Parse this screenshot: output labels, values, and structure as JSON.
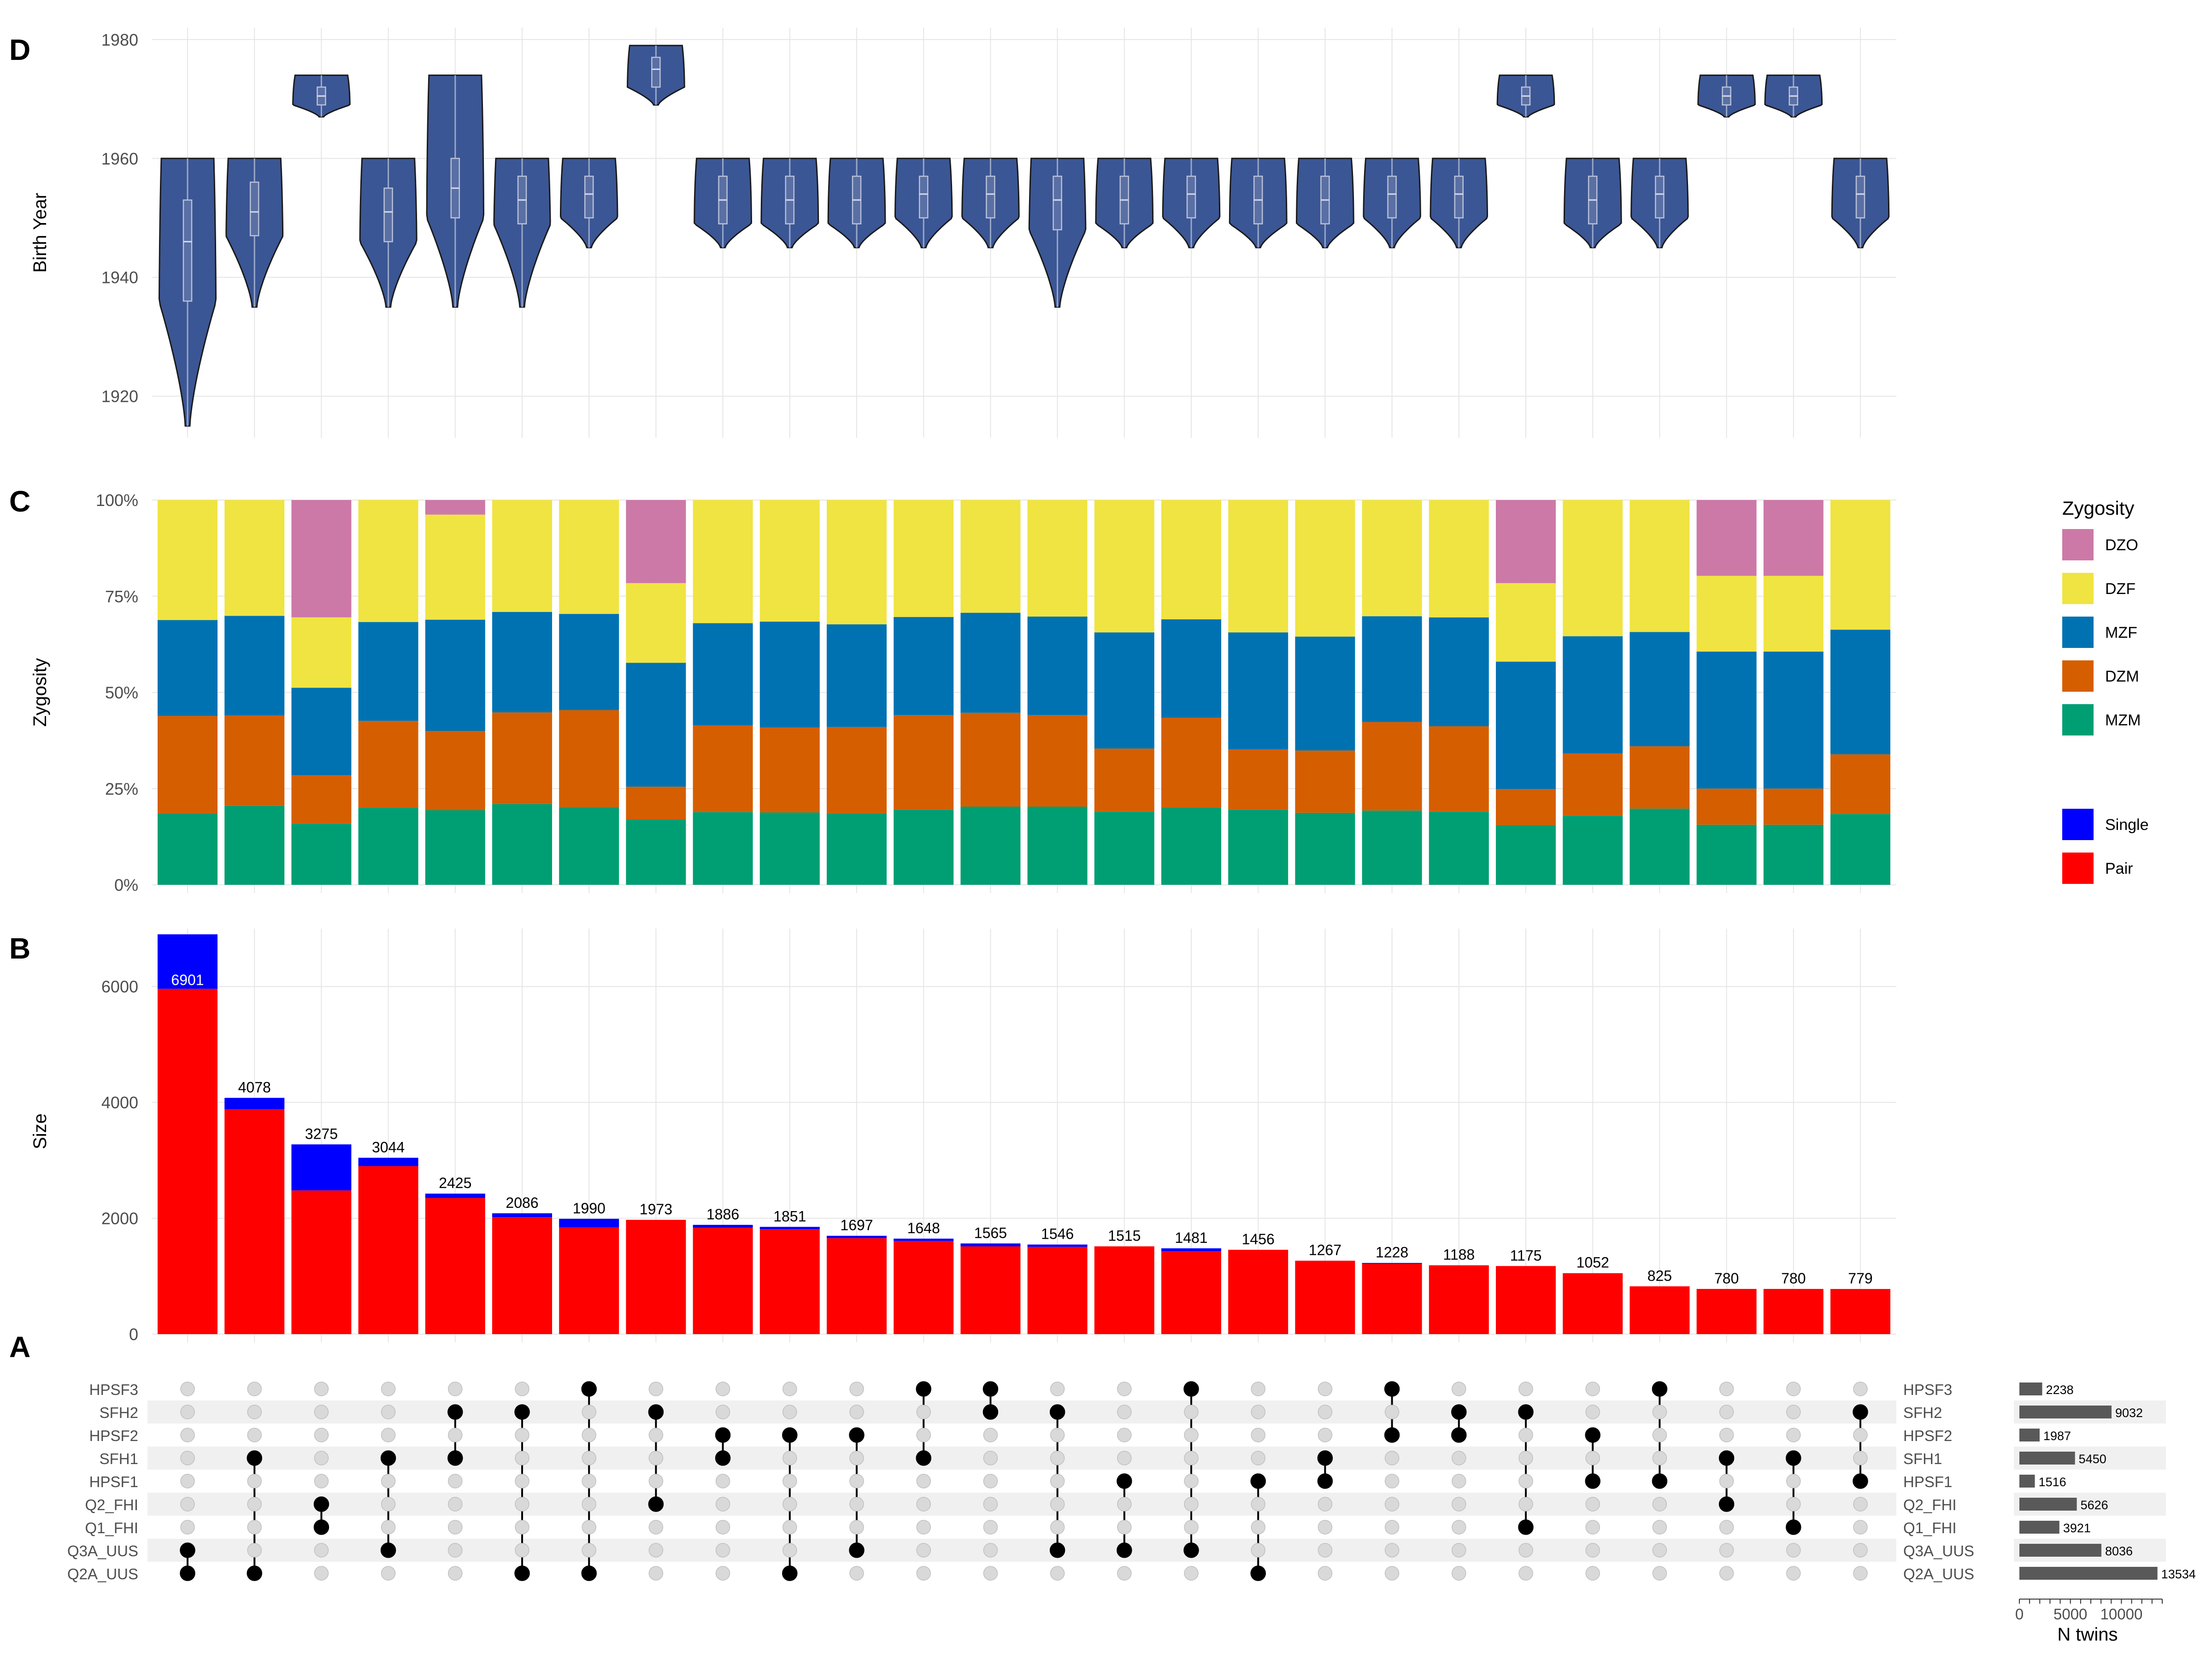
{
  "chart_data": [
    {
      "type": "violin",
      "panel_letter": "D",
      "ylabel": "Birth Year",
      "yticks": [
        1920,
        1940,
        1960,
        1980
      ],
      "ylim": [
        1913,
        1982
      ],
      "fill_color": "#3b5694",
      "groups": [
        {
          "min": 1915,
          "max": 1960,
          "q1": 1936,
          "median": 1946,
          "q3": 1953
        },
        {
          "min": 1935,
          "max": 1960,
          "q1": 1947,
          "median": 1951,
          "q3": 1956
        },
        {
          "min": 1967,
          "max": 1974,
          "q1": 1969,
          "median": 1970.5,
          "q3": 1972
        },
        {
          "min": 1935,
          "max": 1960,
          "q1": 1946,
          "median": 1951,
          "q3": 1955
        },
        {
          "min": 1935,
          "max": 1974,
          "q1": 1950,
          "median": 1955,
          "q3": 1960
        },
        {
          "min": 1935,
          "max": 1960,
          "q1": 1949,
          "median": 1953,
          "q3": 1957
        },
        {
          "min": 1945,
          "max": 1960,
          "q1": 1950,
          "median": 1954,
          "q3": 1957
        },
        {
          "min": 1969,
          "max": 1979,
          "q1": 1972,
          "median": 1975,
          "q3": 1977
        },
        {
          "min": 1945,
          "max": 1960,
          "q1": 1949,
          "median": 1953,
          "q3": 1957
        },
        {
          "min": 1945,
          "max": 1960,
          "q1": 1949,
          "median": 1953,
          "q3": 1957
        },
        {
          "min": 1945,
          "max": 1960,
          "q1": 1949,
          "median": 1953,
          "q3": 1957
        },
        {
          "min": 1945,
          "max": 1960,
          "q1": 1950,
          "median": 1954,
          "q3": 1957
        },
        {
          "min": 1945,
          "max": 1960,
          "q1": 1950,
          "median": 1954,
          "q3": 1957
        },
        {
          "min": 1935,
          "max": 1960,
          "q1": 1948,
          "median": 1953,
          "q3": 1957
        },
        {
          "min": 1945,
          "max": 1960,
          "q1": 1949,
          "median": 1953,
          "q3": 1957
        },
        {
          "min": 1945,
          "max": 1960,
          "q1": 1950,
          "median": 1954,
          "q3": 1957
        },
        {
          "min": 1945,
          "max": 1960,
          "q1": 1949,
          "median": 1953,
          "q3": 1957
        },
        {
          "min": 1945,
          "max": 1960,
          "q1": 1949,
          "median": 1953,
          "q3": 1957
        },
        {
          "min": 1945,
          "max": 1960,
          "q1": 1950,
          "median": 1954,
          "q3": 1957
        },
        {
          "min": 1945,
          "max": 1960,
          "q1": 1950,
          "median": 1954,
          "q3": 1957
        },
        {
          "min": 1967,
          "max": 1974,
          "q1": 1969,
          "median": 1970.5,
          "q3": 1972
        },
        {
          "min": 1945,
          "max": 1960,
          "q1": 1949,
          "median": 1953,
          "q3": 1957
        },
        {
          "min": 1945,
          "max": 1960,
          "q1": 1950,
          "median": 1954,
          "q3": 1957
        },
        {
          "min": 1967,
          "max": 1974,
          "q1": 1969,
          "median": 1970.5,
          "q3": 1972
        },
        {
          "min": 1967,
          "max": 1974,
          "q1": 1969,
          "median": 1970.5,
          "q3": 1972
        },
        {
          "min": 1945,
          "max": 1960,
          "q1": 1950,
          "median": 1954,
          "q3": 1957
        }
      ]
    },
    {
      "type": "bar",
      "stacked": true,
      "panel_letter": "C",
      "ylabel": "Zygosity",
      "yticks": [
        "0%",
        "25%",
        "50%",
        "75%",
        "100%"
      ],
      "ylim": [
        0,
        100
      ],
      "stack_order": [
        "MZM",
        "DZM",
        "MZF",
        "DZF",
        "DZO"
      ],
      "series": [
        {
          "name": "MZM",
          "color": "#009e73",
          "values": [
            18.5,
            20.5,
            15.9,
            20.1,
            19.4,
            21.0,
            20.2,
            17.0,
            18.9,
            18.8,
            18.6,
            19.5,
            20.3,
            20.3,
            19.0,
            20.0,
            19.5,
            18.7,
            19.3,
            19.0,
            15.5,
            18.0,
            19.8,
            15.6,
            15.6,
            18.4
          ]
        },
        {
          "name": "DZM",
          "color": "#d55e00",
          "values": [
            25.4,
            23.5,
            12.6,
            22.5,
            20.6,
            23.8,
            25.2,
            8.5,
            22.5,
            22.1,
            22.4,
            24.6,
            24.4,
            23.8,
            16.4,
            23.4,
            15.7,
            16.2,
            23.0,
            22.2,
            9.4,
            16.1,
            16.2,
            9.4,
            9.4,
            15.5
          ]
        },
        {
          "name": "MZF",
          "color": "#0072b2",
          "values": [
            24.9,
            25.9,
            22.7,
            25.7,
            28.9,
            26.1,
            25.0,
            32.2,
            26.6,
            27.5,
            26.7,
            25.5,
            26.0,
            25.6,
            30.2,
            25.6,
            30.4,
            29.6,
            27.5,
            28.3,
            33.1,
            30.5,
            29.7,
            35.6,
            35.6,
            32.4
          ]
        },
        {
          "name": "DZF",
          "color": "#f0e442",
          "values": [
            31.2,
            30.1,
            18.3,
            31.7,
            27.3,
            29.1,
            29.6,
            20.7,
            32.0,
            31.6,
            32.3,
            30.4,
            29.3,
            30.3,
            34.4,
            31.0,
            34.4,
            35.5,
            30.2,
            30.5,
            20.4,
            35.4,
            34.3,
            19.7,
            19.7,
            33.7
          ]
        },
        {
          "name": "DZO",
          "color": "#cc79a7",
          "values": [
            0,
            0,
            30.5,
            0,
            3.8,
            0,
            0,
            21.6,
            0,
            0,
            0,
            0,
            0,
            0,
            0,
            0,
            0,
            0,
            0,
            0,
            21.6,
            0,
            0,
            19.7,
            19.7,
            0
          ]
        }
      ],
      "legend": {
        "title": "Zygosity",
        "position": "right",
        "entries": [
          {
            "label": "DZO",
            "color": "#cc79a7"
          },
          {
            "label": "DZF",
            "color": "#f0e442"
          },
          {
            "label": "MZF",
            "color": "#0072b2"
          },
          {
            "label": "DZM",
            "color": "#d55e00"
          },
          {
            "label": "MZM",
            "color": "#009e73"
          }
        ]
      }
    },
    {
      "type": "bar",
      "stacked": true,
      "panel_letter": "B",
      "ylabel": "Size",
      "yticks": [
        0,
        2000,
        4000,
        6000
      ],
      "ylim": [
        0,
        7000
      ],
      "totals": [
        6901,
        4078,
        3275,
        3044,
        2425,
        2086,
        1990,
        1973,
        1886,
        1851,
        1697,
        1648,
        1565,
        1546,
        1515,
        1481,
        1456,
        1267,
        1228,
        1188,
        1175,
        1052,
        825,
        780,
        780,
        779
      ],
      "series": [
        {
          "name": "Pair",
          "color": "#ff0000",
          "values": [
            5960,
            3880,
            2480,
            2900,
            2350,
            2020,
            1840,
            1973,
            1836,
            1811,
            1657,
            1608,
            1515,
            1506,
            1515,
            1431,
            1456,
            1267,
            1213,
            1188,
            1175,
            1052,
            825,
            780,
            780,
            779
          ]
        },
        {
          "name": "Single",
          "color": "#0000ff",
          "values": [
            941,
            198,
            795,
            144,
            75,
            66,
            150,
            0,
            50,
            40,
            40,
            40,
            50,
            40,
            0,
            50,
            0,
            0,
            15,
            0,
            0,
            0,
            0,
            0,
            0,
            0
          ]
        }
      ],
      "legend": {
        "position": "right",
        "entries": [
          {
            "label": "Single",
            "color": "#0000ff"
          },
          {
            "label": "Pair",
            "color": "#ff0000"
          }
        ]
      }
    },
    {
      "type": "upset-matrix",
      "panel_letter": "A",
      "sets": [
        "HPSF3",
        "SFH2",
        "HPSF2",
        "SFH1",
        "HPSF1",
        "Q2_FHI",
        "Q1_FHI",
        "Q3A_UUS",
        "Q2A_UUS"
      ],
      "intersections": [
        [
          "Q3A_UUS",
          "Q2A_UUS"
        ],
        [
          "SFH1",
          "Q2A_UUS"
        ],
        [
          "Q2_FHI",
          "Q1_FHI"
        ],
        [
          "SFH1",
          "Q3A_UUS"
        ],
        [
          "SFH2",
          "SFH1"
        ],
        [
          "SFH2",
          "Q2A_UUS"
        ],
        [
          "HPSF3",
          "Q2A_UUS"
        ],
        [
          "SFH2",
          "Q2_FHI"
        ],
        [
          "HPSF2",
          "SFH1"
        ],
        [
          "HPSF2",
          "Q2A_UUS"
        ],
        [
          "HPSF2",
          "Q3A_UUS"
        ],
        [
          "HPSF3",
          "SFH1"
        ],
        [
          "HPSF3",
          "SFH2"
        ],
        [
          "SFH2",
          "Q3A_UUS"
        ],
        [
          "HPSF1",
          "Q3A_UUS"
        ],
        [
          "HPSF3",
          "Q3A_UUS"
        ],
        [
          "HPSF1",
          "Q2A_UUS"
        ],
        [
          "SFH1",
          "HPSF1"
        ],
        [
          "HPSF3",
          "HPSF2"
        ],
        [
          "SFH2",
          "HPSF2"
        ],
        [
          "SFH2",
          "Q1_FHI"
        ],
        [
          "HPSF2",
          "HPSF1"
        ],
        [
          "HPSF3",
          "HPSF1"
        ],
        [
          "SFH1",
          "Q2_FHI"
        ],
        [
          "SFH1",
          "Q1_FHI"
        ],
        [
          "SFH2",
          "HPSF1"
        ]
      ]
    },
    {
      "type": "bar",
      "orientation": "horizontal",
      "xlabel": "N twins",
      "xticks": [
        0,
        5000,
        10000
      ],
      "xlim": [
        0,
        14000
      ],
      "color": "#595959",
      "categories": [
        "HPSF3",
        "SFH2",
        "HPSF2",
        "SFH1",
        "HPSF1",
        "Q2_FHI",
        "Q1_FHI",
        "Q3A_UUS",
        "Q2A_UUS"
      ],
      "values": [
        2238,
        9032,
        1987,
        5450,
        1516,
        5626,
        3921,
        8036,
        13534
      ]
    }
  ]
}
